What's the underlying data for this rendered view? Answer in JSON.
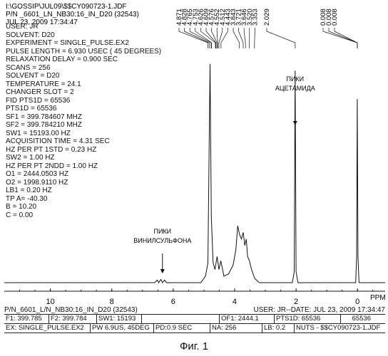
{
  "header": {
    "file_path": "I:\\GOSSIP\\JUL09\\$$CY090723-1.JDF",
    "pn_line": "P/N _6601_LN_NB30:16_IN_D20 (32543)",
    "date_line": "JUL 23, 2009 17:34:47"
  },
  "params": [
    "USER: JR",
    "SOLVENT: D20",
    "EXPERIMENT = SINGLE_PULSE.EX2",
    "PULSE LENGTH = 6.930 USEC ( 45 DEGREES)",
    "RELAXATION DELAY = 0.900 SEC",
    "SCANS = 256",
    "SOLVENT = D20",
    "TEMPERATURE = 24.1",
    "CHANGER SLOT = 2",
    "FID PTS1D = 65536",
    "PTS1D = 65536",
    "SF1 = 399.784607 MHZ",
    "SF2 = 399.784210 MHZ",
    "SW1 = 15193.00 HZ",
    "ACQUISITION TIME = 4.31 SEC",
    "HZ PER PT 1STD = 0.23 HZ",
    "SW2 = 1.00 HZ",
    "HZ PER PT 2NDD = 1.00 HZ",
    "O1 = 2444.0503 HZ",
    "O2 = 1998.9110 HZ",
    "LB1 = 0.20 HZ",
    "TP A= -40.30",
    "B = 10.20",
    "C = 0.00"
  ],
  "chart_data": {
    "type": "line",
    "xlabel": "PPM",
    "xlim": [
      11.5,
      -0.9
    ],
    "x_ticks": [
      10,
      8,
      6,
      4,
      2,
      0
    ],
    "peak_labels": [
      "4.871",
      "4.828",
      "4.765",
      "4.753",
      "4.626",
      "4.609",
      "4.576",
      "4.552",
      "4.512",
      "4.443",
      "3.843",
      "3.721",
      "3.646",
      "3.520",
      "3.353",
      "2.029",
      "0.008",
      "0.008",
      "0.008"
    ],
    "peak_label_positions_ppm": [
      4.871,
      4.828,
      4.765,
      4.753,
      4.626,
      4.609,
      4.576,
      4.552,
      4.512,
      4.443,
      3.843,
      3.721,
      3.646,
      3.52,
      3.353,
      2.029,
      0.008,
      0.008,
      0.008
    ],
    "spectrum": [
      {
        "ppm": 11.5,
        "y": 0.0
      },
      {
        "ppm": 6.6,
        "y": 0.0
      },
      {
        "ppm": 6.52,
        "y": 0.012
      },
      {
        "ppm": 6.47,
        "y": 0.0
      },
      {
        "ppm": 6.4,
        "y": 0.015
      },
      {
        "ppm": 6.35,
        "y": 0.0
      },
      {
        "ppm": 6.28,
        "y": 0.012
      },
      {
        "ppm": 6.22,
        "y": 0.0
      },
      {
        "ppm": 5.1,
        "y": 0.0
      },
      {
        "ppm": 4.95,
        "y": 0.03
      },
      {
        "ppm": 4.87,
        "y": 0.09
      },
      {
        "ppm": 4.8,
        "y": 1.0
      },
      {
        "ppm": 4.76,
        "y": 0.3
      },
      {
        "ppm": 4.7,
        "y": 0.09
      },
      {
        "ppm": 4.64,
        "y": 0.06
      },
      {
        "ppm": 4.57,
        "y": 0.12
      },
      {
        "ppm": 4.51,
        "y": 0.06
      },
      {
        "ppm": 4.45,
        "y": 0.1
      },
      {
        "ppm": 4.35,
        "y": 0.03
      },
      {
        "ppm": 4.2,
        "y": 0.04
      },
      {
        "ppm": 4.05,
        "y": 0.08
      },
      {
        "ppm": 3.96,
        "y": 0.15
      },
      {
        "ppm": 3.9,
        "y": 0.26
      },
      {
        "ppm": 3.84,
        "y": 0.22
      },
      {
        "ppm": 3.78,
        "y": 0.2
      },
      {
        "ppm": 3.72,
        "y": 0.23
      },
      {
        "ppm": 3.67,
        "y": 0.17
      },
      {
        "ppm": 3.62,
        "y": 0.2
      },
      {
        "ppm": 3.58,
        "y": 0.12
      },
      {
        "ppm": 3.52,
        "y": 0.1
      },
      {
        "ppm": 3.45,
        "y": 0.06
      },
      {
        "ppm": 3.35,
        "y": 0.02
      },
      {
        "ppm": 3.2,
        "y": 0.0
      },
      {
        "ppm": 2.12,
        "y": 0.0
      },
      {
        "ppm": 2.06,
        "y": 0.05
      },
      {
        "ppm": 2.03,
        "y": 0.97
      },
      {
        "ppm": 2.0,
        "y": 0.05
      },
      {
        "ppm": 1.94,
        "y": 0.0
      },
      {
        "ppm": 0.06,
        "y": 0.0
      },
      {
        "ppm": 0.03,
        "y": 0.12
      },
      {
        "ppm": 0.008,
        "y": 0.84
      },
      {
        "ppm": -0.015,
        "y": 0.12
      },
      {
        "ppm": -0.05,
        "y": 0.0
      },
      {
        "ppm": -0.9,
        "y": 0.0
      }
    ],
    "annotations": [
      {
        "text_lines": [
          "ПИКИ",
          "АЦЕТАМИДА"
        ],
        "ppm": 2.03
      },
      {
        "text_lines": [
          "ПИКИ",
          "ВИНИЛСУЛЬФОНА"
        ],
        "ppm": 6.35
      }
    ]
  },
  "footer": {
    "pn_line": "P/N_6601_L/N_NB30:16_IN_D20 (32543)",
    "user_date": "USER: JR--DATE: JUL 23, 2009 17:34:47"
  },
  "status_row1": [
    "F1: 399.785",
    "F2: 399.784",
    "SW1: 15193",
    "",
    "OF1: 2444.1",
    "PTS1D: 65536",
    "65536"
  ],
  "status_row2": [
    "EX: SINGLE_PULSE.EX2",
    "PW 6.9US, 45DEG",
    "PD:0.9 SEC",
    "NA: 256",
    "LB: 0.2",
    "NUTS - $$CY090723-1.JDF"
  ],
  "caption": "Фиг. 1"
}
